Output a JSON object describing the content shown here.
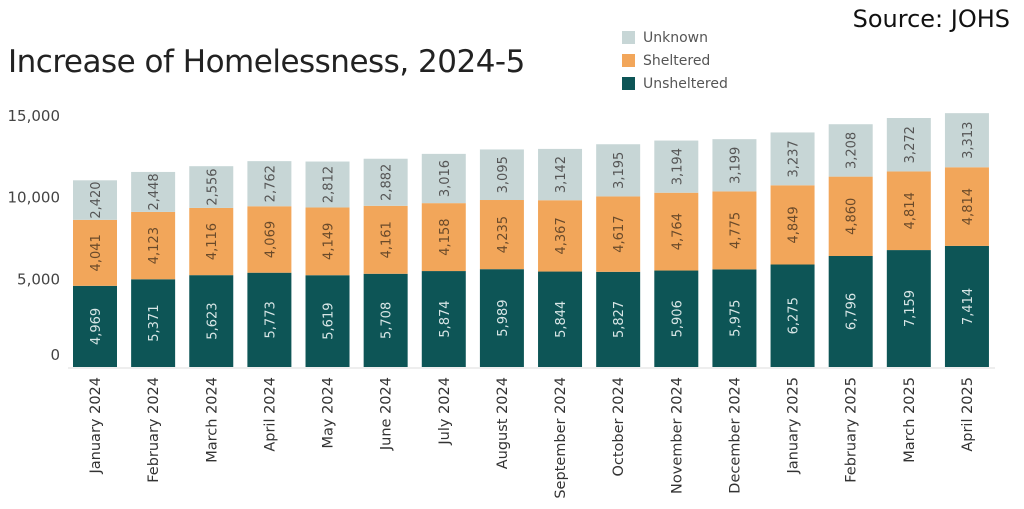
{
  "source": "Source: JOHS",
  "chart_data": {
    "type": "bar",
    "stacked": true,
    "title": "Increase of Homelessness, 2024-5",
    "xlabel": "",
    "ylabel": "",
    "ylim": [
      0,
      15000
    ],
    "yticks": [
      0,
      5000,
      10000,
      15000
    ],
    "ytick_labels": [
      "0",
      "5,000",
      "10,000",
      "15,000"
    ],
    "grid": false,
    "legend_position": "top-right",
    "categories": [
      "January 2024",
      "February 2024",
      "March 2024",
      "April 2024",
      "May 2024",
      "June 2024",
      "July 2024",
      "August 2024",
      "September 2024",
      "October 2024",
      "November 2024",
      "December 2024",
      "January 2025",
      "February 2025",
      "March 2025",
      "April 2025"
    ],
    "series": [
      {
        "name": "Unsheltered",
        "color": "#0d5556",
        "label_color": "#d8e6e6",
        "values": [
          4969,
          5371,
          5623,
          5773,
          5619,
          5708,
          5874,
          5989,
          5844,
          5827,
          5906,
          5975,
          6275,
          6796,
          7159,
          7414
        ]
      },
      {
        "name": "Sheltered",
        "color": "#f2a65a",
        "label_color": "#6a4a2a",
        "values": [
          4041,
          4123,
          4116,
          4069,
          4149,
          4161,
          4158,
          4235,
          4367,
          4617,
          4764,
          4775,
          4849,
          4860,
          4814,
          4814
        ]
      },
      {
        "name": "Unknown",
        "color": "#c7d6d6",
        "label_color": "#555555",
        "values": [
          2420,
          2448,
          2556,
          2762,
          2812,
          2882,
          3016,
          3095,
          3142,
          3195,
          3194,
          3199,
          3237,
          3208,
          3272,
          3313
        ]
      }
    ],
    "legend_order": [
      2,
      1,
      0
    ]
  }
}
